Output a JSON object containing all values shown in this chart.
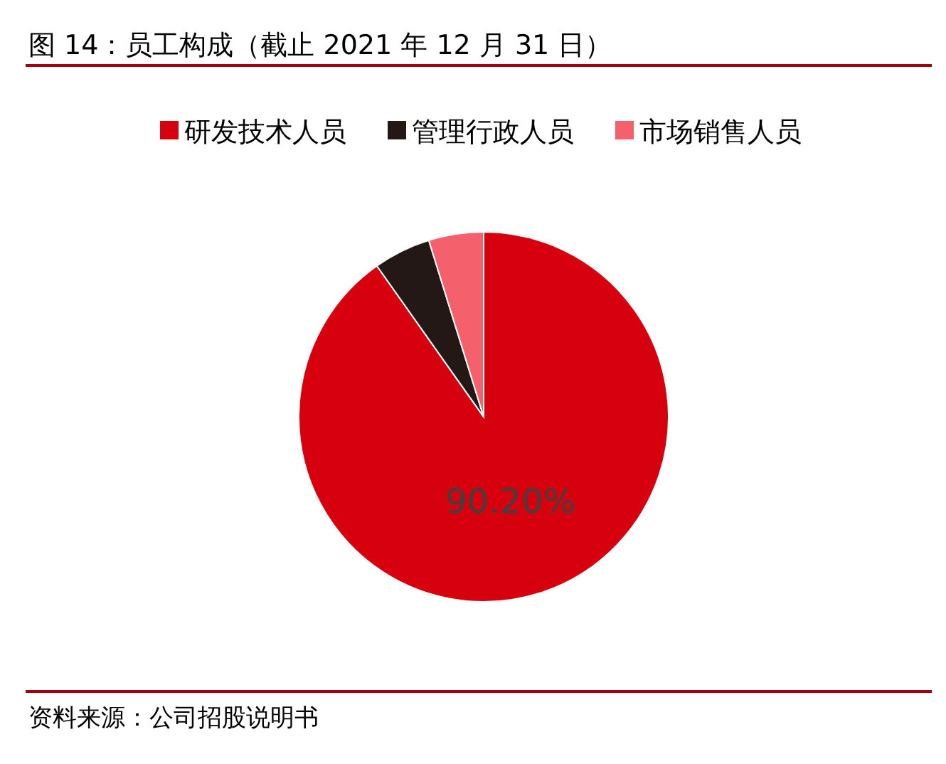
{
  "chart_data": {
    "type": "pie",
    "title": "图 14：员工构成（截止 2021 年 12 月 31 日）",
    "categories": [
      "研发技术人员",
      "管理行政人员",
      "市场销售人员"
    ],
    "values": [
      90.2,
      5.0,
      4.8
    ],
    "colors": [
      "#d7000f",
      "#231815",
      "#f4606c"
    ],
    "value_labels": [
      "90.20%",
      null,
      null
    ],
    "legend": "top",
    "annotations": [
      "资料来源：公司招股说明书"
    ]
  }
}
